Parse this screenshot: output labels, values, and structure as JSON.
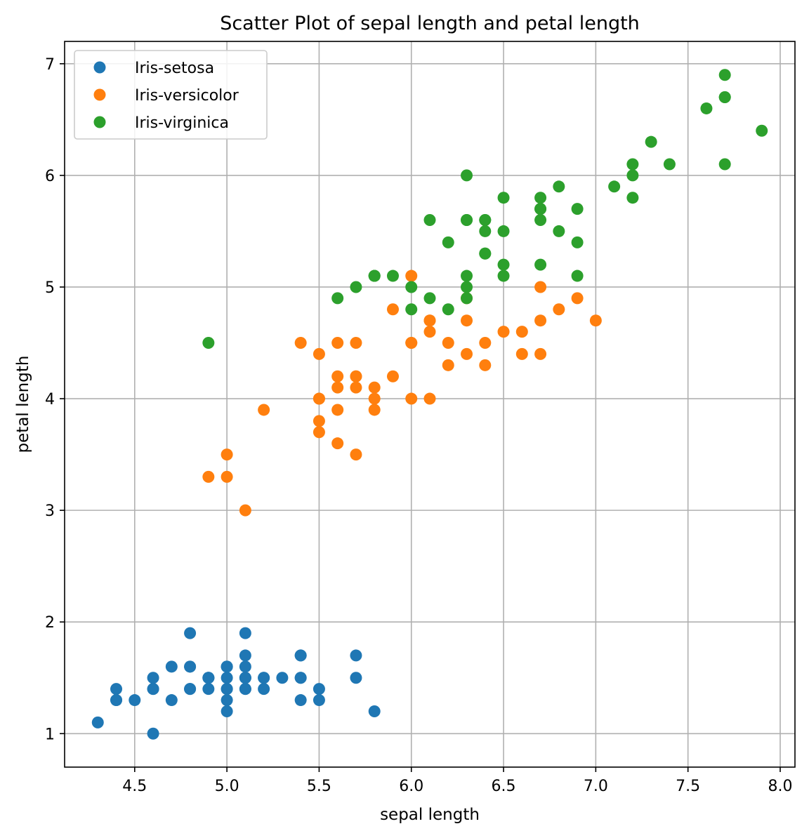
{
  "chart_data": {
    "type": "scatter",
    "title": "Scatter Plot of sepal length and petal length",
    "xlabel": "sepal length",
    "ylabel": "petal length",
    "xlim": [
      4.12,
      8.08
    ],
    "ylim": [
      0.7,
      7.2
    ],
    "xticks": [
      4.5,
      5.0,
      5.5,
      6.0,
      6.5,
      7.0,
      7.5,
      8.0
    ],
    "xtick_labels": [
      "4.5",
      "5.0",
      "5.5",
      "6.0",
      "6.5",
      "7.0",
      "7.5",
      "8.0"
    ],
    "yticks": [
      1,
      2,
      3,
      4,
      5,
      6,
      7
    ],
    "ytick_labels": [
      "1",
      "2",
      "3",
      "4",
      "5",
      "6",
      "7"
    ],
    "grid": true,
    "legend_position": "top-left",
    "series": [
      {
        "name": "Iris-setosa",
        "color": "#1f77b4",
        "points": [
          [
            5.1,
            1.4
          ],
          [
            4.9,
            1.4
          ],
          [
            4.7,
            1.3
          ],
          [
            4.6,
            1.5
          ],
          [
            5.0,
            1.4
          ],
          [
            5.4,
            1.7
          ],
          [
            4.6,
            1.4
          ],
          [
            5.0,
            1.5
          ],
          [
            4.4,
            1.4
          ],
          [
            4.9,
            1.5
          ],
          [
            5.4,
            1.5
          ],
          [
            4.8,
            1.6
          ],
          [
            4.8,
            1.4
          ],
          [
            4.3,
            1.1
          ],
          [
            5.8,
            1.2
          ],
          [
            5.7,
            1.5
          ],
          [
            5.4,
            1.3
          ],
          [
            5.1,
            1.4
          ],
          [
            5.7,
            1.7
          ],
          [
            5.1,
            1.5
          ],
          [
            5.4,
            1.7
          ],
          [
            5.1,
            1.5
          ],
          [
            4.6,
            1.0
          ],
          [
            5.1,
            1.7
          ],
          [
            4.8,
            1.9
          ],
          [
            5.0,
            1.6
          ],
          [
            5.0,
            1.6
          ],
          [
            5.2,
            1.5
          ],
          [
            5.2,
            1.4
          ],
          [
            4.7,
            1.6
          ],
          [
            4.8,
            1.6
          ],
          [
            5.4,
            1.5
          ],
          [
            5.2,
            1.5
          ],
          [
            5.5,
            1.4
          ],
          [
            4.9,
            1.5
          ],
          [
            5.0,
            1.2
          ],
          [
            5.5,
            1.3
          ],
          [
            4.9,
            1.5
          ],
          [
            4.4,
            1.3
          ],
          [
            5.1,
            1.5
          ],
          [
            5.0,
            1.3
          ],
          [
            4.5,
            1.3
          ],
          [
            4.4,
            1.3
          ],
          [
            5.0,
            1.6
          ],
          [
            5.1,
            1.9
          ],
          [
            4.8,
            1.4
          ],
          [
            5.1,
            1.6
          ],
          [
            4.6,
            1.4
          ],
          [
            5.3,
            1.5
          ],
          [
            5.0,
            1.4
          ]
        ]
      },
      {
        "name": "Iris-versicolor",
        "color": "#ff7f0e",
        "points": [
          [
            7.0,
            4.7
          ],
          [
            6.4,
            4.5
          ],
          [
            6.9,
            4.9
          ],
          [
            5.5,
            4.0
          ],
          [
            6.5,
            4.6
          ],
          [
            5.7,
            4.5
          ],
          [
            6.3,
            4.7
          ],
          [
            4.9,
            3.3
          ],
          [
            6.6,
            4.6
          ],
          [
            5.2,
            3.9
          ],
          [
            5.0,
            3.5
          ],
          [
            5.9,
            4.2
          ],
          [
            6.0,
            4.0
          ],
          [
            6.1,
            4.7
          ],
          [
            5.6,
            3.6
          ],
          [
            6.7,
            4.4
          ],
          [
            5.6,
            4.5
          ],
          [
            5.8,
            4.1
          ],
          [
            6.2,
            4.5
          ],
          [
            5.6,
            3.9
          ],
          [
            5.9,
            4.8
          ],
          [
            6.1,
            4.0
          ],
          [
            6.3,
            4.9
          ],
          [
            6.1,
            4.7
          ],
          [
            6.4,
            4.3
          ],
          [
            6.6,
            4.4
          ],
          [
            6.8,
            4.8
          ],
          [
            6.7,
            5.0
          ],
          [
            6.0,
            4.5
          ],
          [
            5.7,
            3.5
          ],
          [
            5.5,
            3.8
          ],
          [
            5.5,
            3.7
          ],
          [
            5.8,
            3.9
          ],
          [
            6.0,
            5.1
          ],
          [
            5.4,
            4.5
          ],
          [
            6.0,
            4.5
          ],
          [
            6.7,
            4.7
          ],
          [
            6.3,
            4.4
          ],
          [
            5.6,
            4.1
          ],
          [
            5.5,
            4.0
          ],
          [
            5.5,
            4.4
          ],
          [
            6.1,
            4.6
          ],
          [
            5.8,
            4.0
          ],
          [
            5.0,
            3.3
          ],
          [
            5.6,
            4.2
          ],
          [
            5.7,
            4.2
          ],
          [
            5.7,
            4.2
          ],
          [
            6.2,
            4.3
          ],
          [
            5.1,
            3.0
          ],
          [
            5.7,
            4.1
          ]
        ]
      },
      {
        "name": "Iris-virginica",
        "color": "#2ca02c",
        "points": [
          [
            6.3,
            6.0
          ],
          [
            5.8,
            5.1
          ],
          [
            7.1,
            5.9
          ],
          [
            6.3,
            5.6
          ],
          [
            6.5,
            5.8
          ],
          [
            7.6,
            6.6
          ],
          [
            4.9,
            4.5
          ],
          [
            7.3,
            6.3
          ],
          [
            6.7,
            5.8
          ],
          [
            7.2,
            6.1
          ],
          [
            6.5,
            5.1
          ],
          [
            6.4,
            5.3
          ],
          [
            6.8,
            5.5
          ],
          [
            5.7,
            5.0
          ],
          [
            5.8,
            5.1
          ],
          [
            6.4,
            5.3
          ],
          [
            6.5,
            5.5
          ],
          [
            7.7,
            6.7
          ],
          [
            7.7,
            6.9
          ],
          [
            6.0,
            5.0
          ],
          [
            6.9,
            5.7
          ],
          [
            5.6,
            4.9
          ],
          [
            7.7,
            6.7
          ],
          [
            6.3,
            4.9
          ],
          [
            6.7,
            5.7
          ],
          [
            7.2,
            6.0
          ],
          [
            6.2,
            4.8
          ],
          [
            6.1,
            4.9
          ],
          [
            6.4,
            5.6
          ],
          [
            7.2,
            5.8
          ],
          [
            7.4,
            6.1
          ],
          [
            7.9,
            6.4
          ],
          [
            6.4,
            5.6
          ],
          [
            6.3,
            5.1
          ],
          [
            6.1,
            5.6
          ],
          [
            7.7,
            6.1
          ],
          [
            6.3,
            5.6
          ],
          [
            6.4,
            5.5
          ],
          [
            6.0,
            4.8
          ],
          [
            6.9,
            5.4
          ],
          [
            6.7,
            5.6
          ],
          [
            6.9,
            5.1
          ],
          [
            5.8,
            5.1
          ],
          [
            6.8,
            5.9
          ],
          [
            6.7,
            5.7
          ],
          [
            6.7,
            5.2
          ],
          [
            6.3,
            5.0
          ],
          [
            6.5,
            5.2
          ],
          [
            6.2,
            5.4
          ],
          [
            5.9,
            5.1
          ]
        ]
      }
    ]
  }
}
